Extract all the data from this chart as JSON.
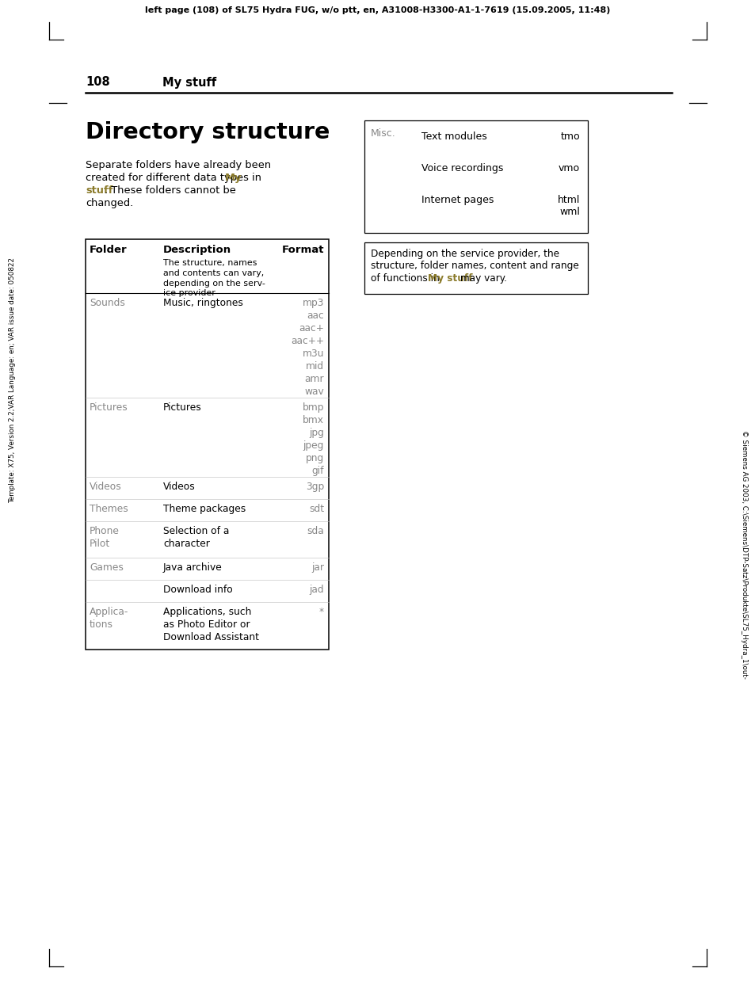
{
  "header_text": "left page (108) of SL75 Hydra FUG, w/o ptt, en, A31008-H3300-A1-1-7619 (15.09.2005, 11:48)",
  "page_number": "108",
  "page_section": "My stuff",
  "title": "Directory structure",
  "left_sidebar": "Template: X75, Version 2.2;VAR Language: en; VAR issue date: 050822",
  "right_sidebar": "© Siemens AG 2003, C:\\Siemens\\DTP-Satz\\Produkte\\SL75_Hydra_1\\out-",
  "misc_header": "Misc.",
  "misc_rows": [
    {
      "desc": "Text modules",
      "fmt": "tmo"
    },
    {
      "desc": "Voice recordings",
      "fmt": "vmo"
    },
    {
      "desc": "Internet pages",
      "fmt": "html\nwml"
    }
  ],
  "note_line1": "Depending on the service provider, the",
  "note_line2": "structure, folder names, content and range",
  "note_line3_pre": "of functions in ",
  "note_line3_hl": "My stuff",
  "note_line3_post": " may vary.",
  "tbl_col1": "Folder",
  "tbl_col2": "Description",
  "tbl_col3": "Format",
  "tbl_subheader": "The structure, names\nand contents can vary,\ndepending on the serv-\nice provider",
  "tbl_rows": [
    {
      "folder": "Sounds",
      "desc": "Music, ringtones",
      "fmt": "mp3\naac\naac+\naac++\nm3u\nmid\namr\nwav"
    },
    {
      "folder": "Pictures",
      "desc": "Pictures",
      "fmt": "bmp\nbmx\njpg\njpeg\npng\ngif"
    },
    {
      "folder": "Videos",
      "desc": "Videos",
      "fmt": "3gp"
    },
    {
      "folder": "Themes",
      "desc": "Theme packages",
      "fmt": "sdt"
    },
    {
      "folder": "Phone\nPilot",
      "desc": "Selection of a\ncharacter",
      "fmt": "sda"
    },
    {
      "folder": "Games",
      "desc": "Java archive",
      "fmt": "jar"
    },
    {
      "folder": "",
      "desc": "Download info",
      "fmt": "jad"
    },
    {
      "folder": "Applica-\ntions",
      "desc": "Applications, such\nas Photo Editor or\nDownload Assistant",
      "fmt": "*"
    }
  ],
  "hl_color": "#8B7B2B",
  "gray": "#888888",
  "black": "#000000",
  "white": "#ffffff"
}
